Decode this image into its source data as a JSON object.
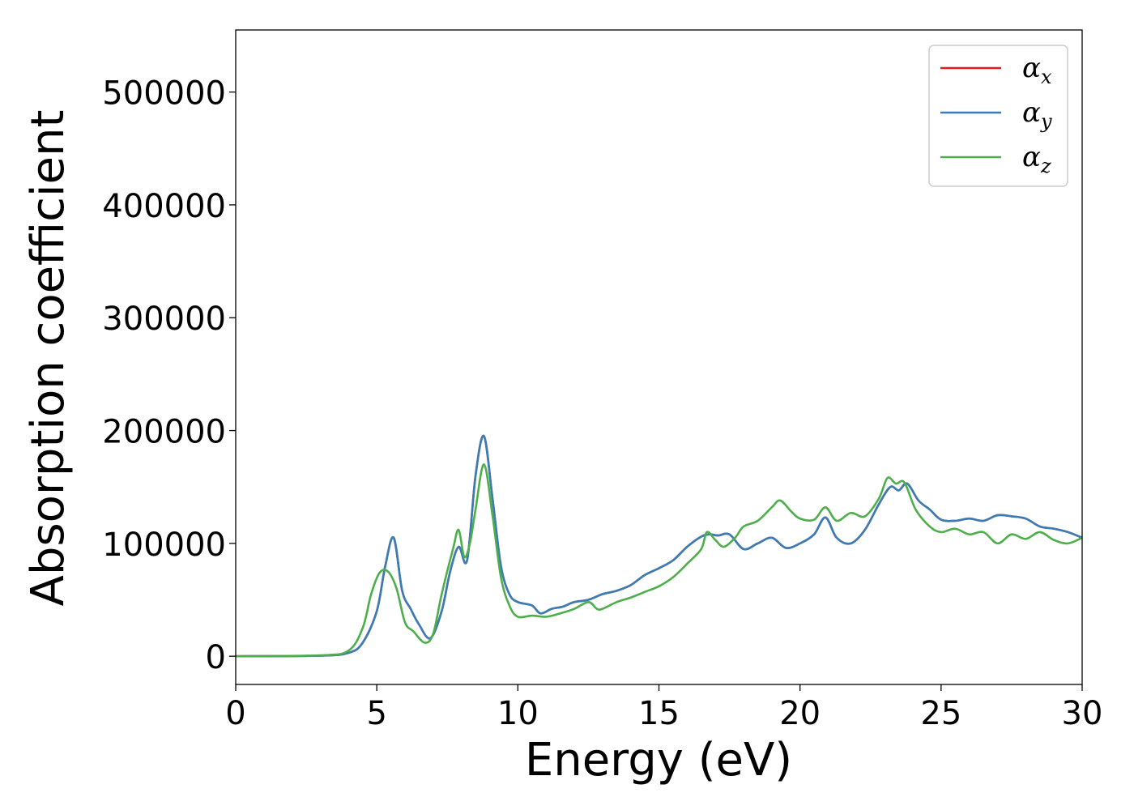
{
  "chart_data": {
    "type": "line",
    "xlabel": "Energy (eV)",
    "ylabel": "Absorption coefficient",
    "xlim": [
      0,
      30
    ],
    "ylim": [
      -25000,
      555000
    ],
    "xticks": [
      0,
      5,
      10,
      15,
      20,
      25,
      30
    ],
    "xtick_labels": [
      "0",
      "5",
      "10",
      "15",
      "20",
      "25",
      "30"
    ],
    "yticks": [
      0,
      100000,
      200000,
      300000,
      400000,
      500000
    ],
    "ytick_labels": [
      "0",
      "100000",
      "200000",
      "300000",
      "400000",
      "500000"
    ],
    "grid": false,
    "legend_position": "top-right",
    "series": [
      {
        "name": "α_x",
        "legend_symbol": "α",
        "legend_subscript": "x",
        "color": "#e41a1c",
        "x": [
          0,
          3,
          4,
          4.5,
          5.0,
          5.3,
          5.6,
          5.9,
          6.2,
          6.5,
          6.9,
          7.3,
          7.6,
          7.9,
          8.2,
          8.5,
          8.8,
          9.1,
          9.4,
          9.7,
          10.0,
          10.5,
          10.8,
          11.2,
          11.6,
          12.0,
          12.5,
          13.0,
          13.5,
          14.0,
          14.5,
          15.0,
          15.5,
          16.0,
          16.5,
          16.8,
          17.1,
          17.5,
          18.0,
          18.5,
          19.0,
          19.5,
          20.0,
          20.5,
          20.9,
          21.3,
          21.8,
          22.3,
          22.8,
          23.2,
          23.5,
          23.8,
          24.2,
          24.6,
          25.0,
          25.5,
          26.0,
          26.5,
          27.0,
          27.5,
          28.0,
          28.5,
          29.0,
          29.5,
          30.0
        ],
        "y": [
          0,
          500,
          3000,
          12000,
          40000,
          80000,
          105000,
          58000,
          42000,
          28000,
          16000,
          40000,
          75000,
          97000,
          85000,
          160000,
          195000,
          140000,
          80000,
          55000,
          48000,
          45000,
          38000,
          42000,
          44000,
          48000,
          50000,
          55000,
          58000,
          63000,
          72000,
          78000,
          85000,
          97000,
          106000,
          108000,
          107000,
          108000,
          95000,
          100000,
          105000,
          96000,
          100000,
          108000,
          123000,
          105000,
          100000,
          112000,
          135000,
          150000,
          147000,
          153000,
          138000,
          130000,
          121000,
          120000,
          122000,
          120000,
          125000,
          124000,
          122000,
          115000,
          113000,
          110000,
          105000
        ]
      },
      {
        "name": "α_y",
        "legend_symbol": "α",
        "legend_subscript": "y",
        "color": "#377eb8",
        "x": [
          0,
          3,
          4,
          4.5,
          5.0,
          5.3,
          5.6,
          5.9,
          6.2,
          6.5,
          6.9,
          7.3,
          7.6,
          7.9,
          8.2,
          8.5,
          8.8,
          9.1,
          9.4,
          9.7,
          10.0,
          10.5,
          10.8,
          11.2,
          11.6,
          12.0,
          12.5,
          13.0,
          13.5,
          14.0,
          14.5,
          15.0,
          15.5,
          16.0,
          16.5,
          16.8,
          17.1,
          17.5,
          18.0,
          18.5,
          19.0,
          19.5,
          20.0,
          20.5,
          20.9,
          21.3,
          21.8,
          22.3,
          22.8,
          23.2,
          23.5,
          23.8,
          24.2,
          24.6,
          25.0,
          25.5,
          26.0,
          26.5,
          27.0,
          27.5,
          28.0,
          28.5,
          29.0,
          29.5,
          30.0
        ],
        "y": [
          0,
          500,
          3000,
          12000,
          40000,
          80000,
          105000,
          58000,
          42000,
          28000,
          16000,
          40000,
          75000,
          97000,
          85000,
          160000,
          195000,
          140000,
          80000,
          55000,
          48000,
          45000,
          38000,
          42000,
          44000,
          48000,
          50000,
          55000,
          58000,
          63000,
          72000,
          78000,
          85000,
          97000,
          106000,
          108000,
          107000,
          108000,
          95000,
          100000,
          105000,
          96000,
          100000,
          108000,
          123000,
          105000,
          100000,
          112000,
          135000,
          150000,
          147000,
          153000,
          138000,
          130000,
          121000,
          120000,
          122000,
          120000,
          125000,
          124000,
          122000,
          115000,
          113000,
          110000,
          105000
        ]
      },
      {
        "name": "α_z",
        "legend_symbol": "α",
        "legend_subscript": "z",
        "color": "#4daf4a",
        "x": [
          0,
          3,
          4,
          4.5,
          4.8,
          5.1,
          5.4,
          5.7,
          6.0,
          6.3,
          6.7,
          7.0,
          7.3,
          7.7,
          7.9,
          8.1,
          8.3,
          8.5,
          8.8,
          9.1,
          9.4,
          9.7,
          10.0,
          10.5,
          11.0,
          11.5,
          12.0,
          12.5,
          12.8,
          13.0,
          13.5,
          14.0,
          14.5,
          15.0,
          15.5,
          16.0,
          16.5,
          16.7,
          17.0,
          17.3,
          17.7,
          18.0,
          18.5,
          19.0,
          19.3,
          19.7,
          20.0,
          20.5,
          20.9,
          21.3,
          21.8,
          22.3,
          22.8,
          23.1,
          23.4,
          23.7,
          24.1,
          24.6,
          25.0,
          25.5,
          26.0,
          26.5,
          27.0,
          27.5,
          28.0,
          28.5,
          29.0,
          29.5,
          30.0
        ],
        "y": [
          0,
          800,
          5000,
          25000,
          55000,
          74000,
          75000,
          60000,
          30000,
          22000,
          12000,
          20000,
          55000,
          95000,
          112000,
          88000,
          100000,
          130000,
          170000,
          125000,
          70000,
          45000,
          35000,
          36000,
          35000,
          38000,
          42000,
          48000,
          42000,
          42000,
          48000,
          52000,
          57000,
          62000,
          70000,
          82000,
          95000,
          110000,
          103000,
          97000,
          105000,
          115000,
          120000,
          132000,
          138000,
          128000,
          122000,
          121000,
          132000,
          120000,
          127000,
          124000,
          140000,
          158000,
          153000,
          154000,
          130000,
          115000,
          110000,
          113000,
          108000,
          110000,
          100000,
          108000,
          104000,
          110000,
          103000,
          100000,
          105000
        ]
      }
    ]
  }
}
